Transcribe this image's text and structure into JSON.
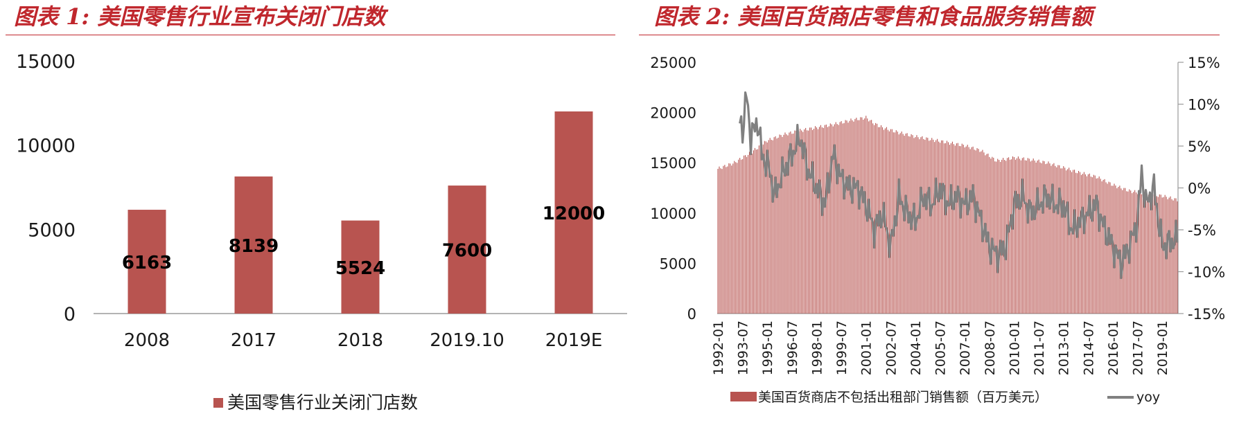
{
  "figure1": {
    "title": "图表 1: 美国零售行业宣布关闭门店数",
    "legend_label": "美国零售行业关闭门店数"
  },
  "figure2": {
    "title": "图表 2: 美国百货商店零售和食品服务销售额",
    "legend_bar_label": "美国百货商店不包括出租部门销售额（百万美元）",
    "legend_line_label": "yoy"
  },
  "colors": {
    "bar": "#b85450",
    "line": "#808080",
    "title": "#c0272d"
  },
  "chart_data": [
    {
      "type": "bar",
      "title": "",
      "categories": [
        "2008",
        "2017",
        "2018",
        "2019.10",
        "2019E"
      ],
      "series": [
        {
          "name": "美国零售行业关闭门店数",
          "values": [
            6163,
            8139,
            5524,
            7600,
            12000
          ]
        }
      ],
      "data_labels": [
        "6163",
        "8139",
        "5524",
        "7600",
        "12000"
      ],
      "ylim": [
        0,
        15000
      ],
      "yticks": [
        "0",
        "5000",
        "10000",
        "15000"
      ],
      "grid": false,
      "legend": "bottom"
    },
    {
      "type": "bar+line",
      "title": "",
      "x_range": [
        "1992-01",
        "2019-12"
      ],
      "x_tick_labels": [
        "1992-01",
        "1993-07",
        "1995-01",
        "1996-07",
        "1998-01",
        "1999-07",
        "2001-01",
        "2002-07",
        "2004-01",
        "2005-07",
        "2007-01",
        "2008-07",
        "2010-01",
        "2011-07",
        "2013-01",
        "2014-07",
        "2016-01",
        "2017-07",
        "2019-01"
      ],
      "left_axis": {
        "ylim": [
          0,
          25000
        ],
        "ticks": [
          "0",
          "5000",
          "10000",
          "15000",
          "20000",
          "25000"
        ]
      },
      "right_axis": {
        "ylim": [
          -15,
          15
        ],
        "ticks": [
          "-15%",
          "-10%",
          "-5%",
          "0%",
          "5%",
          "10%",
          "15%"
        ]
      },
      "series": [
        {
          "name": "美国百货商店不包括出租部门销售额（百万美元）",
          "type": "bar",
          "axis": "left",
          "monthly_anchors": [
            [
              "1992-01",
              14400
            ],
            [
              "1993-01",
              15000
            ],
            [
              "1994-01",
              16000
            ],
            [
              "1995-01",
              17200
            ],
            [
              "1996-01",
              17800
            ],
            [
              "1997-01",
              18200
            ],
            [
              "1998-01",
              18500
            ],
            [
              "1999-01",
              18800
            ],
            [
              "2000-01",
              19200
            ],
            [
              "2001-01",
              19500
            ],
            [
              "2001-07",
              18900
            ],
            [
              "2002-01",
              18500
            ],
            [
              "2003-01",
              18000
            ],
            [
              "2004-01",
              17600
            ],
            [
              "2005-01",
              17300
            ],
            [
              "2006-01",
              17000
            ],
            [
              "2007-01",
              16700
            ],
            [
              "2008-01",
              16200
            ],
            [
              "2008-12",
              15200
            ],
            [
              "2010-01",
              15500
            ],
            [
              "2011-01",
              15300
            ],
            [
              "2012-01",
              15000
            ],
            [
              "2013-01",
              14500
            ],
            [
              "2014-01",
              14000
            ],
            [
              "2015-01",
              13600
            ],
            [
              "2016-01",
              12800
            ],
            [
              "2017-01",
              12200
            ],
            [
              "2018-01",
              11900
            ],
            [
              "2019-01",
              11700
            ],
            [
              "2019-12",
              11300
            ]
          ]
        },
        {
          "name": "yoy",
          "type": "line",
          "axis": "right",
          "monthly_anchors": [
            [
              "1993-05",
              8
            ],
            [
              "1993-07",
              7
            ],
            [
              "1993-10",
              11
            ],
            [
              "1994-01",
              6
            ],
            [
              "1994-06",
              8
            ],
            [
              "1994-09",
              4
            ],
            [
              "1995-03",
              2
            ],
            [
              "1995-06",
              -1
            ],
            [
              "1996-01",
              2
            ],
            [
              "1996-07",
              4
            ],
            [
              "1997-01",
              6
            ],
            [
              "1997-07",
              2
            ],
            [
              "1998-01",
              0
            ],
            [
              "1998-07",
              -2
            ],
            [
              "1999-01",
              4
            ],
            [
              "1999-07",
              1
            ],
            [
              "2000-01",
              0
            ],
            [
              "2000-07",
              0
            ],
            [
              "2001-01",
              -2
            ],
            [
              "2001-07",
              -5
            ],
            [
              "2002-01",
              -3
            ],
            [
              "2002-07",
              -7
            ],
            [
              "2003-01",
              -1
            ],
            [
              "2003-07",
              -3
            ],
            [
              "2004-01",
              -4
            ],
            [
              "2004-07",
              -1
            ],
            [
              "2005-01",
              -2
            ],
            [
              "2005-07",
              0
            ],
            [
              "2006-01",
              -2
            ],
            [
              "2006-07",
              -1
            ],
            [
              "2007-01",
              -2
            ],
            [
              "2007-07",
              -1
            ],
            [
              "2008-01",
              -4
            ],
            [
              "2008-07",
              -7
            ],
            [
              "2009-01",
              -8
            ],
            [
              "2009-07",
              -7
            ],
            [
              "2010-01",
              -2
            ],
            [
              "2010-07",
              -1
            ],
            [
              "2011-01",
              -3
            ],
            [
              "2011-07",
              -2
            ],
            [
              "2012-01",
              -1
            ],
            [
              "2012-07",
              -2
            ],
            [
              "2013-01",
              -2
            ],
            [
              "2013-07",
              -5
            ],
            [
              "2014-01",
              -4
            ],
            [
              "2014-07",
              -3
            ],
            [
              "2015-01",
              -2
            ],
            [
              "2015-07",
              -5
            ],
            [
              "2016-01",
              -7
            ],
            [
              "2016-07",
              -9
            ],
            [
              "2017-01",
              -7
            ],
            [
              "2017-07",
              -4
            ],
            [
              "2017-10",
              2
            ],
            [
              "2018-01",
              -2
            ],
            [
              "2018-07",
              0
            ],
            [
              "2019-01",
              -7
            ],
            [
              "2019-12",
              -6
            ]
          ]
        }
      ],
      "grid": false,
      "legend": "bottom"
    }
  ]
}
